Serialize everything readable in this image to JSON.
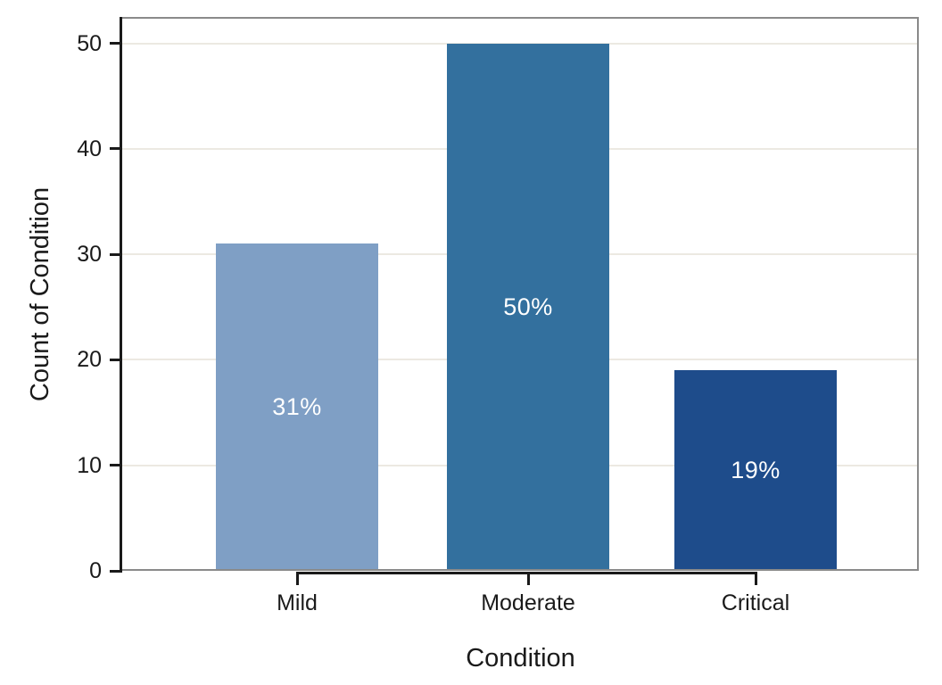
{
  "chart_data": {
    "type": "bar",
    "title": "",
    "xlabel": "Condition",
    "ylabel": "Count of Condition",
    "categories": [
      "Mild",
      "Moderate",
      "Critical"
    ],
    "values": [
      31,
      50,
      19
    ],
    "bar_labels": [
      "31%",
      "50%",
      "19%"
    ],
    "yticks": [
      0,
      10,
      20,
      30,
      40,
      50
    ],
    "ylim": [
      0,
      52.5
    ],
    "grid": true,
    "legend": false,
    "bar_colors": [
      "#7f9fc5",
      "#33709e",
      "#1e4c8b"
    ],
    "bar_label_color": "#ffffff",
    "gridline_color": "#ece9e2",
    "panel_border_color": "#8a8a8a",
    "axis_line_color": "#1a1a1a",
    "text_color": "#1a1a1a",
    "background_color": "#ffffff"
  }
}
